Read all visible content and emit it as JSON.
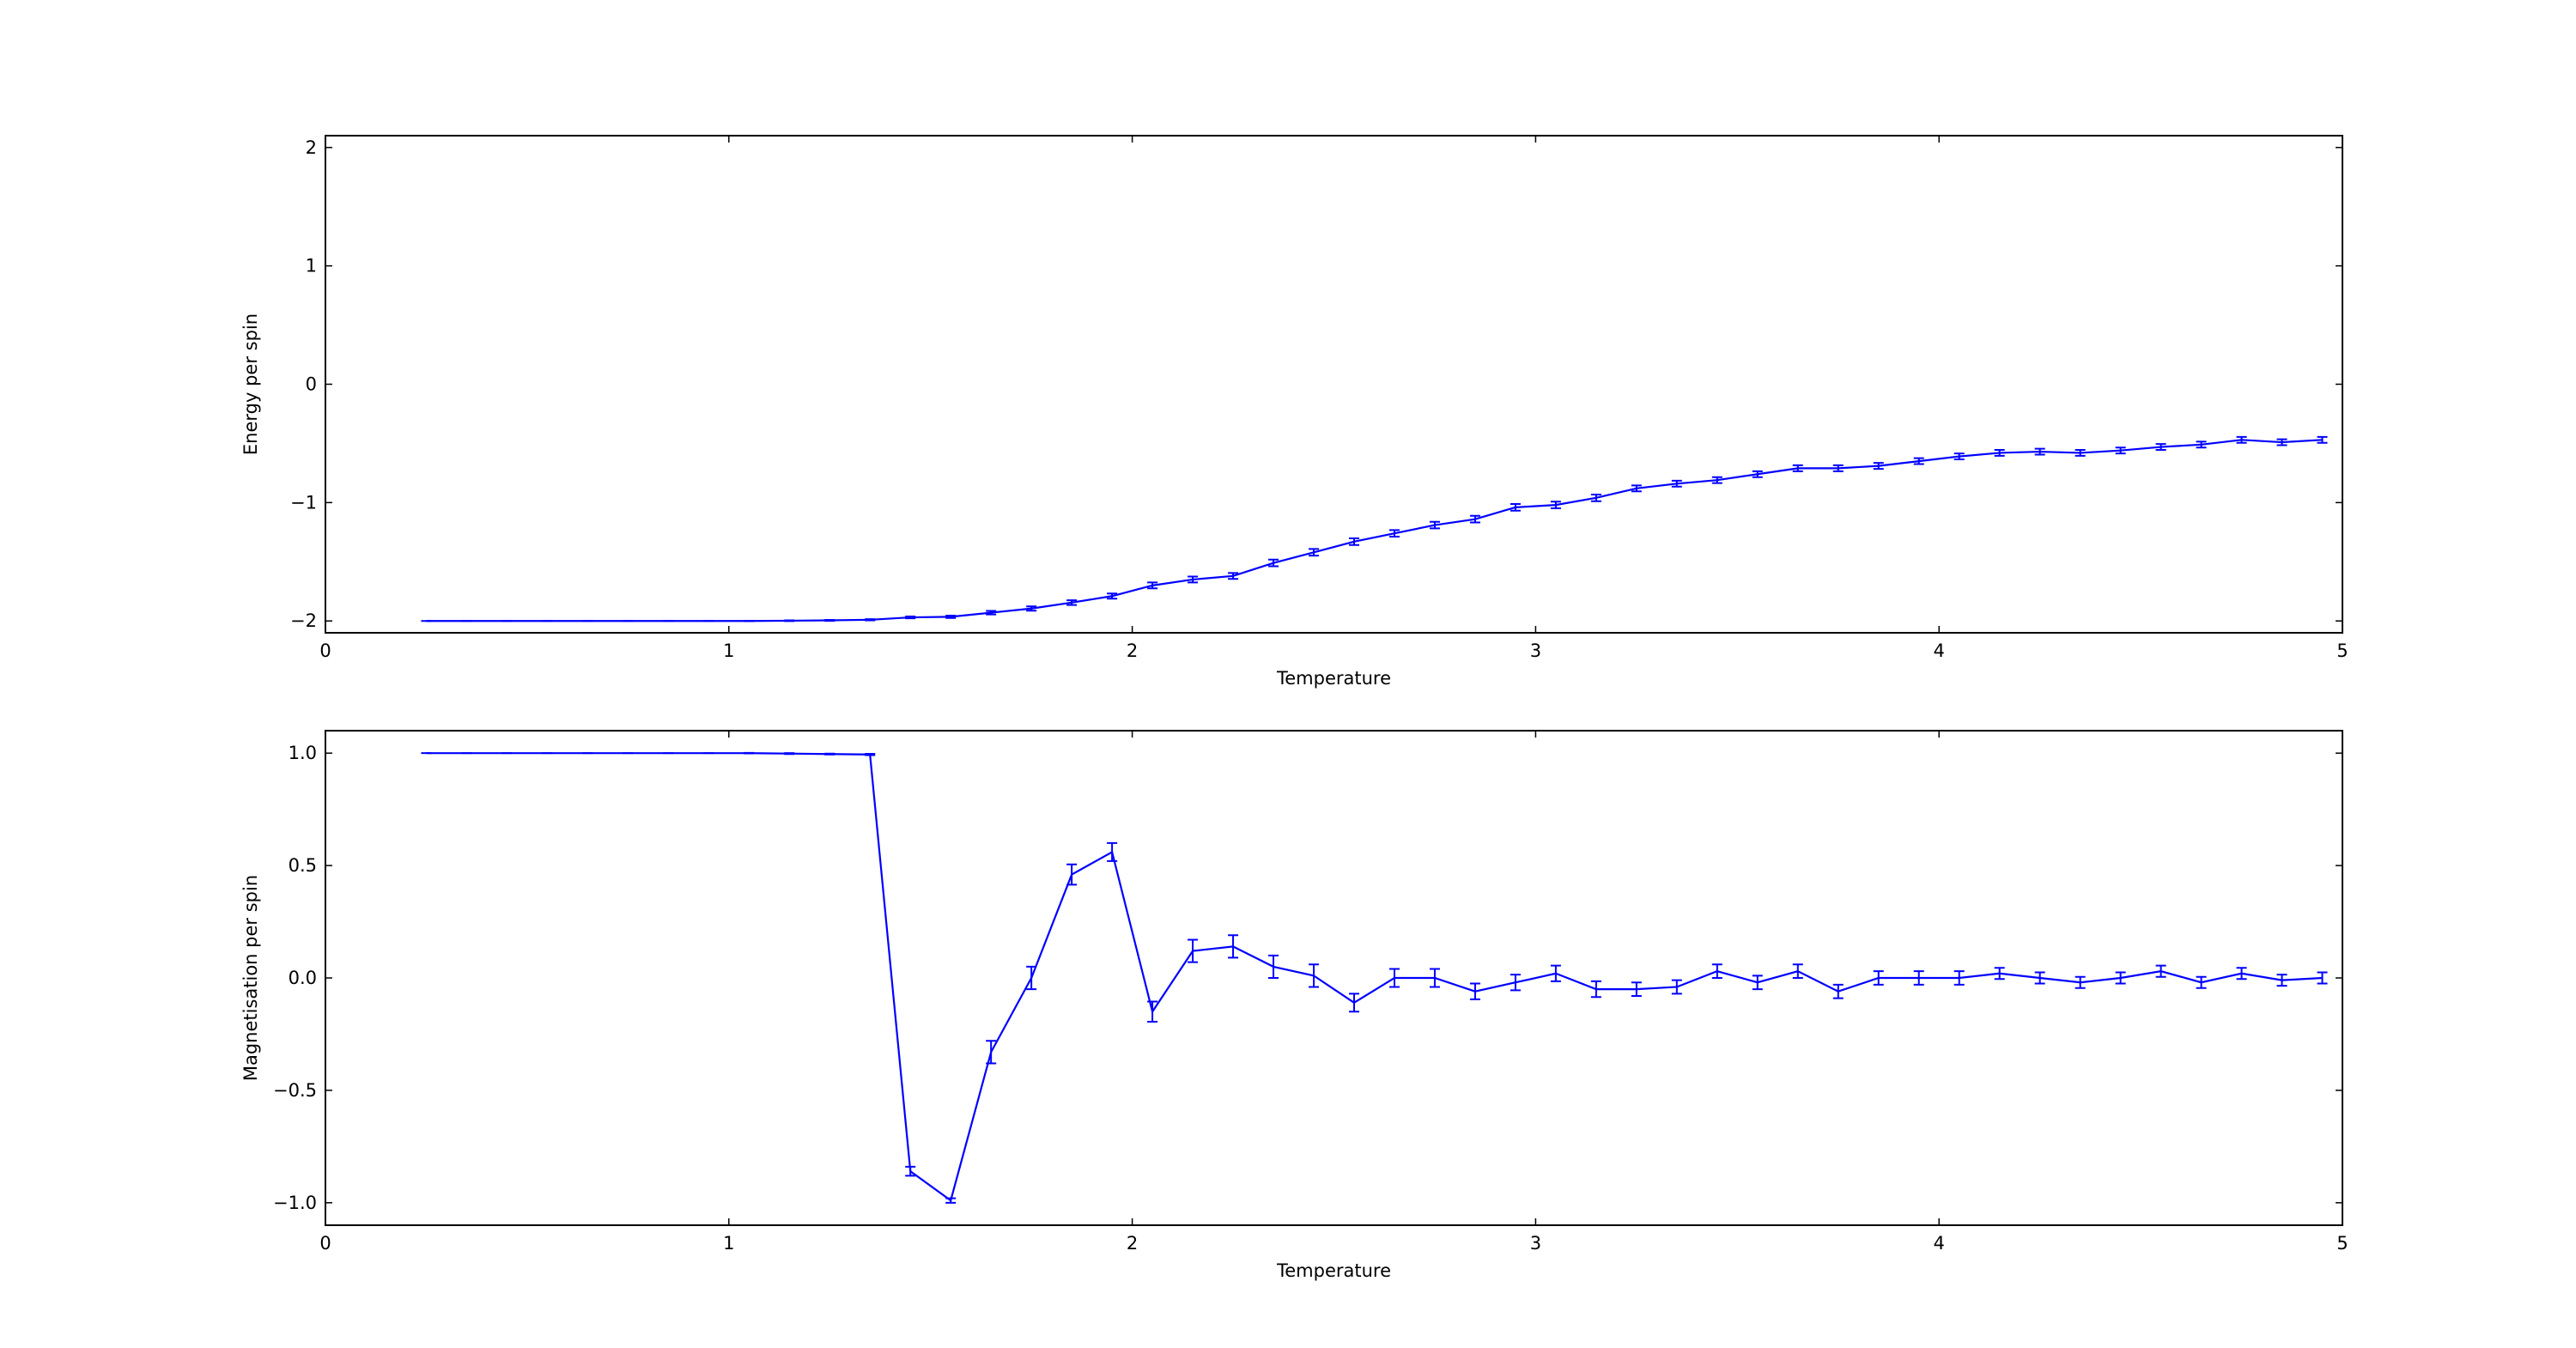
{
  "chart_data": [
    {
      "type": "line",
      "xlabel": "Temperature",
      "ylabel": "Energy per spin",
      "color": "#0000ff",
      "x": [
        0.25,
        0.35,
        0.45,
        0.55,
        0.65,
        0.75,
        0.85,
        0.95,
        1.05,
        1.15,
        1.25,
        1.35,
        1.45,
        1.55,
        1.65,
        1.75,
        1.85,
        1.95,
        2.05,
        2.15,
        2.25,
        2.35,
        2.45,
        2.55,
        2.65,
        2.75,
        2.85,
        2.95,
        3.05,
        3.15,
        3.25,
        3.35,
        3.45,
        3.55,
        3.65,
        3.75,
        3.85,
        3.95,
        4.05,
        4.15,
        4.25,
        4.35,
        4.45,
        4.55,
        4.65,
        4.75,
        4.85,
        4.95
      ],
      "values": [
        -2.0,
        -2.0,
        -2.0,
        -2.0,
        -2.0,
        -2.0,
        -2.0,
        -2.0,
        -2.0,
        -1.998,
        -1.995,
        -1.99,
        -1.97,
        -1.965,
        -1.93,
        -1.895,
        -1.845,
        -1.79,
        -1.7,
        -1.65,
        -1.62,
        -1.51,
        -1.42,
        -1.33,
        -1.26,
        -1.19,
        -1.14,
        -1.04,
        -1.02,
        -0.96,
        -0.88,
        -0.84,
        -0.81,
        -0.76,
        -0.71,
        -0.71,
        -0.69,
        -0.65,
        -0.61,
        -0.58,
        -0.57,
        -0.58,
        -0.56,
        -0.53,
        -0.51,
        -0.47,
        -0.49,
        -0.47
      ],
      "errors": [
        0,
        0,
        0,
        0,
        0,
        0,
        0,
        0,
        0.002,
        0.003,
        0.004,
        0.005,
        0.008,
        0.01,
        0.015,
        0.018,
        0.02,
        0.022,
        0.025,
        0.025,
        0.025,
        0.028,
        0.028,
        0.028,
        0.028,
        0.028,
        0.028,
        0.028,
        0.028,
        0.028,
        0.025,
        0.025,
        0.025,
        0.025,
        0.025,
        0.025,
        0.025,
        0.025,
        0.025,
        0.025,
        0.025,
        0.025,
        0.025,
        0.025,
        0.025,
        0.025,
        0.025,
        0.025
      ],
      "xlim": [
        0,
        5
      ],
      "xticks": [
        0,
        1,
        2,
        3,
        4,
        5
      ],
      "ylim": [
        -2.1,
        2.1
      ],
      "yticks": [
        {
          "value": -2,
          "label": "−2"
        },
        {
          "value": -1,
          "label": "−1"
        },
        0,
        1,
        2
      ]
    },
    {
      "type": "line",
      "xlabel": "Temperature",
      "ylabel": "Magnetisation per spin",
      "color": "#0000ff",
      "x": [
        0.25,
        0.35,
        0.45,
        0.55,
        0.65,
        0.75,
        0.85,
        0.95,
        1.05,
        1.15,
        1.25,
        1.35,
        1.45,
        1.55,
        1.65,
        1.75,
        1.85,
        1.95,
        2.05,
        2.15,
        2.25,
        2.35,
        2.45,
        2.55,
        2.65,
        2.75,
        2.85,
        2.95,
        3.05,
        3.15,
        3.25,
        3.35,
        3.45,
        3.55,
        3.65,
        3.75,
        3.85,
        3.95,
        4.05,
        4.15,
        4.25,
        4.35,
        4.45,
        4.55,
        4.65,
        4.75,
        4.85,
        4.95
      ],
      "values": [
        1.0,
        1.0,
        1.0,
        1.0,
        1.0,
        1.0,
        1.0,
        1.0,
        1.0,
        0.998,
        0.996,
        0.994,
        -0.86,
        -0.99,
        -0.33,
        0.0,
        0.46,
        0.56,
        -0.15,
        0.12,
        0.14,
        0.05,
        0.01,
        -0.11,
        0.0,
        0.0,
        -0.06,
        -0.02,
        0.02,
        -0.05,
        -0.05,
        -0.04,
        0.03,
        -0.02,
        0.03,
        -0.06,
        0.0,
        0.0,
        0.0,
        0.02,
        0.0,
        -0.02,
        0.0,
        0.03,
        -0.02,
        0.02,
        -0.01,
        0.0
      ],
      "errors": [
        0,
        0,
        0,
        0,
        0,
        0,
        0,
        0,
        0.001,
        0.002,
        0.002,
        0.003,
        0.02,
        0.01,
        0.05,
        0.05,
        0.045,
        0.04,
        0.045,
        0.05,
        0.05,
        0.05,
        0.05,
        0.04,
        0.04,
        0.04,
        0.035,
        0.035,
        0.035,
        0.035,
        0.03,
        0.03,
        0.03,
        0.03,
        0.03,
        0.03,
        0.03,
        0.03,
        0.03,
        0.025,
        0.025,
        0.025,
        0.025,
        0.025,
        0.025,
        0.025,
        0.025,
        0.025
      ],
      "xlim": [
        0,
        5
      ],
      "xticks": [
        0,
        1,
        2,
        3,
        4,
        5
      ],
      "ylim": [
        -1.1,
        1.1
      ],
      "yticks": [
        {
          "value": -1.0,
          "label": "−1.0"
        },
        {
          "value": -0.5,
          "label": "−0.5"
        },
        {
          "value": 0,
          "label": "0.0"
        },
        {
          "value": 0.5,
          "label": "0.5"
        },
        {
          "value": 1.0,
          "label": "1.0"
        }
      ]
    }
  ]
}
